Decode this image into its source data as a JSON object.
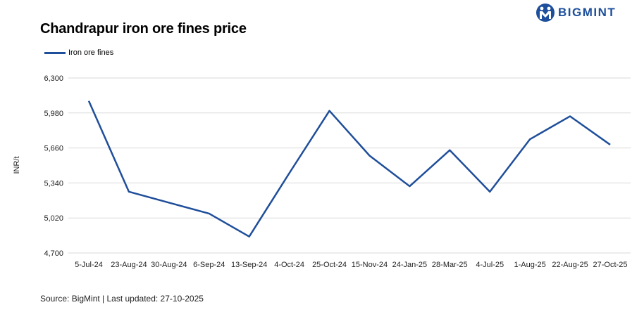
{
  "header": {
    "title": "Chandrapur iron ore fines price",
    "logo_text": "BIGMINT"
  },
  "footer": {
    "source": "Source: BigMint | Last updated: 27-10-2025"
  },
  "colors": {
    "series": "#1f4e9a",
    "grid": "#d9d9d9",
    "brand": "#1d4f9c"
  },
  "icons": {
    "logo": "bigmint-logo-icon"
  },
  "chart_data": {
    "type": "line",
    "title": "Chandrapur iron ore fines price",
    "ylabel": "INR/t",
    "xlabel": "",
    "ylim": [
      4700,
      6300
    ],
    "yticks": [
      "4,700",
      "5,020",
      "5,340",
      "5,660",
      "5,980",
      "6,300"
    ],
    "ytick_values": [
      4700,
      5020,
      5340,
      5660,
      5980,
      6300
    ],
    "grid": true,
    "legend_position": "top-left",
    "categories": [
      "5-Jul-24",
      "23-Aug-24",
      "30-Aug-24",
      "6-Sep-24",
      "13-Sep-24",
      "4-Oct-24",
      "25-Oct-24",
      "15-Nov-24",
      "24-Jan-25",
      "28-Mar-25",
      "4-Jul-25",
      "1-Aug-25",
      "22-Aug-25",
      "27-Oct-25"
    ],
    "series": [
      {
        "name": "Iron ore fines",
        "values": [
          6090,
          5260,
          5160,
          5060,
          4850,
          5430,
          6000,
          5590,
          5310,
          5640,
          5260,
          5740,
          5950,
          5690
        ]
      }
    ]
  }
}
